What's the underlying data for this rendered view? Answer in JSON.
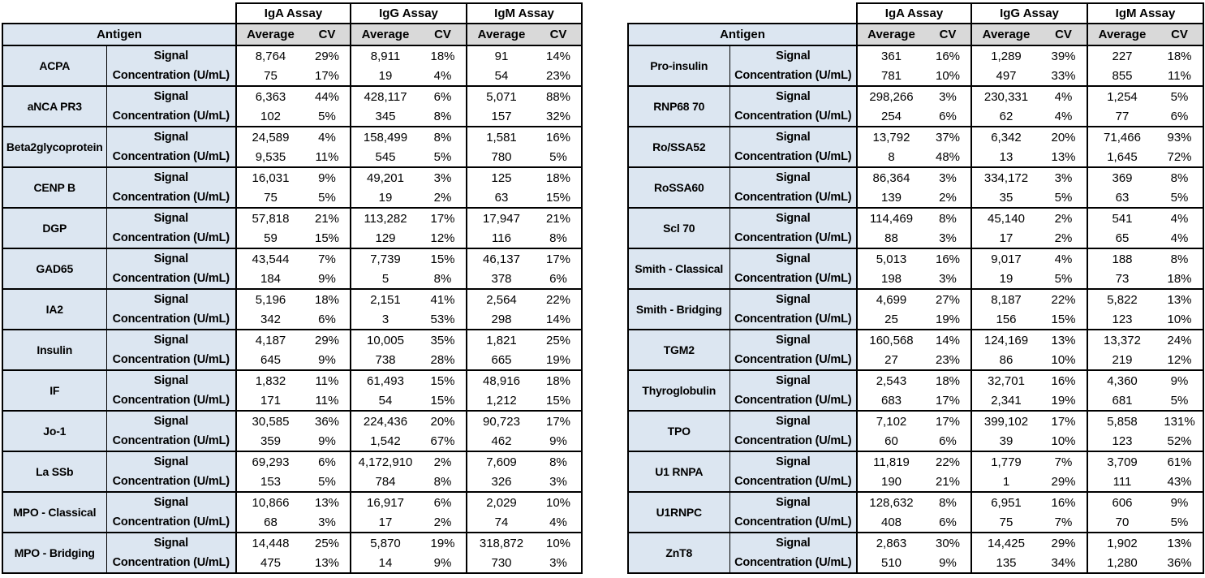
{
  "colors": {
    "antigen_bg": "#DCE6F1",
    "header_bg": "#D9D9D9",
    "border": "#000000",
    "cell_bg": "#FFFFFF"
  },
  "assays": [
    "IgA Assay",
    "IgG Assay",
    "IgM Assay"
  ],
  "headers": {
    "antigen": "Antigen",
    "average": "Average",
    "cv": "CV"
  },
  "row_labels": {
    "signal": "Signal",
    "concentration": "Concentration (U/mL)"
  },
  "tables": [
    {
      "name": "left",
      "rows": [
        {
          "antigen": "ACPA",
          "signal": [
            "8,764",
            "29%",
            "8,911",
            "18%",
            "91",
            "14%"
          ],
          "concentration": [
            "75",
            "17%",
            "19",
            "4%",
            "54",
            "23%"
          ]
        },
        {
          "antigen": "aNCA PR3",
          "signal": [
            "6,363",
            "44%",
            "428,117",
            "6%",
            "5,071",
            "88%"
          ],
          "concentration": [
            "102",
            "5%",
            "345",
            "8%",
            "157",
            "32%"
          ]
        },
        {
          "antigen": "Beta2glycoprotein",
          "signal": [
            "24,589",
            "4%",
            "158,499",
            "8%",
            "1,581",
            "16%"
          ],
          "concentration": [
            "9,535",
            "11%",
            "545",
            "5%",
            "780",
            "5%"
          ]
        },
        {
          "antigen": "CENP B",
          "signal": [
            "16,031",
            "9%",
            "49,201",
            "3%",
            "125",
            "18%"
          ],
          "concentration": [
            "75",
            "5%",
            "19",
            "2%",
            "63",
            "15%"
          ]
        },
        {
          "antigen": "DGP",
          "signal": [
            "57,818",
            "21%",
            "113,282",
            "17%",
            "17,947",
            "21%"
          ],
          "concentration": [
            "59",
            "15%",
            "129",
            "12%",
            "116",
            "8%"
          ]
        },
        {
          "antigen": "GAD65",
          "signal": [
            "43,544",
            "7%",
            "7,739",
            "15%",
            "46,137",
            "17%"
          ],
          "concentration": [
            "184",
            "9%",
            "5",
            "8%",
            "378",
            "6%"
          ]
        },
        {
          "antigen": "IA2",
          "signal": [
            "5,196",
            "18%",
            "2,151",
            "41%",
            "2,564",
            "22%"
          ],
          "concentration": [
            "342",
            "6%",
            "3",
            "53%",
            "298",
            "14%"
          ]
        },
        {
          "antigen": "Insulin",
          "signal": [
            "4,187",
            "29%",
            "10,005",
            "35%",
            "1,821",
            "25%"
          ],
          "concentration": [
            "645",
            "9%",
            "738",
            "28%",
            "665",
            "19%"
          ]
        },
        {
          "antigen": "IF",
          "signal": [
            "1,832",
            "11%",
            "61,493",
            "15%",
            "48,916",
            "18%"
          ],
          "concentration": [
            "171",
            "11%",
            "54",
            "15%",
            "1,212",
            "15%"
          ]
        },
        {
          "antigen": "Jo-1",
          "signal": [
            "30,585",
            "36%",
            "224,436",
            "20%",
            "90,723",
            "17%"
          ],
          "concentration": [
            "359",
            "9%",
            "1,542",
            "67%",
            "462",
            "9%"
          ]
        },
        {
          "antigen": "La SSb",
          "signal": [
            "69,293",
            "6%",
            "4,172,910",
            "2%",
            "7,609",
            "8%"
          ],
          "concentration": [
            "153",
            "5%",
            "784",
            "8%",
            "326",
            "3%"
          ]
        },
        {
          "antigen": "MPO - Classical",
          "signal": [
            "10,866",
            "13%",
            "16,917",
            "6%",
            "2,029",
            "10%"
          ],
          "concentration": [
            "68",
            "3%",
            "17",
            "2%",
            "74",
            "4%"
          ]
        },
        {
          "antigen": "MPO - Bridging",
          "signal": [
            "14,448",
            "25%",
            "5,870",
            "19%",
            "318,872",
            "10%"
          ],
          "concentration": [
            "475",
            "13%",
            "14",
            "9%",
            "730",
            "3%"
          ]
        }
      ]
    },
    {
      "name": "right",
      "rows": [
        {
          "antigen": "Pro-insulin",
          "signal": [
            "361",
            "16%",
            "1,289",
            "39%",
            "227",
            "18%"
          ],
          "concentration": [
            "781",
            "10%",
            "497",
            "33%",
            "855",
            "11%"
          ]
        },
        {
          "antigen": "RNP68 70",
          "signal": [
            "298,266",
            "3%",
            "230,331",
            "4%",
            "1,254",
            "5%"
          ],
          "concentration": [
            "254",
            "6%",
            "62",
            "4%",
            "77",
            "6%"
          ]
        },
        {
          "antigen": "Ro/SSA52",
          "signal": [
            "13,792",
            "37%",
            "6,342",
            "20%",
            "71,466",
            "93%"
          ],
          "concentration": [
            "8",
            "48%",
            "13",
            "13%",
            "1,645",
            "72%"
          ]
        },
        {
          "antigen": "RoSSA60",
          "signal": [
            "86,364",
            "3%",
            "334,172",
            "3%",
            "369",
            "8%"
          ],
          "concentration": [
            "139",
            "2%",
            "35",
            "5%",
            "63",
            "5%"
          ]
        },
        {
          "antigen": "Scl 70",
          "signal": [
            "114,469",
            "8%",
            "45,140",
            "2%",
            "541",
            "4%"
          ],
          "concentration": [
            "88",
            "3%",
            "17",
            "2%",
            "65",
            "4%"
          ]
        },
        {
          "antigen": "Smith - Classical",
          "signal": [
            "5,013",
            "16%",
            "9,017",
            "4%",
            "188",
            "8%"
          ],
          "concentration": [
            "198",
            "3%",
            "19",
            "5%",
            "73",
            "18%"
          ]
        },
        {
          "antigen": "Smith - Bridging",
          "signal": [
            "4,699",
            "27%",
            "8,187",
            "22%",
            "5,822",
            "13%"
          ],
          "concentration": [
            "25",
            "19%",
            "156",
            "15%",
            "123",
            "10%"
          ]
        },
        {
          "antigen": "TGM2",
          "signal": [
            "160,568",
            "14%",
            "124,169",
            "13%",
            "13,372",
            "24%"
          ],
          "concentration": [
            "27",
            "23%",
            "86",
            "10%",
            "219",
            "12%"
          ]
        },
        {
          "antigen": "Thyroglobulin",
          "signal": [
            "2,543",
            "18%",
            "32,701",
            "16%",
            "4,360",
            "9%"
          ],
          "concentration": [
            "683",
            "17%",
            "2,341",
            "19%",
            "681",
            "5%"
          ]
        },
        {
          "antigen": "TPO",
          "signal": [
            "7,102",
            "17%",
            "399,102",
            "17%",
            "5,858",
            "131%"
          ],
          "concentration": [
            "60",
            "6%",
            "39",
            "10%",
            "123",
            "52%"
          ]
        },
        {
          "antigen": "U1 RNPA",
          "signal": [
            "11,819",
            "22%",
            "1,779",
            "7%",
            "3,709",
            "61%"
          ],
          "concentration": [
            "190",
            "21%",
            "1",
            "29%",
            "111",
            "43%"
          ]
        },
        {
          "antigen": "U1RNPC",
          "signal": [
            "128,632",
            "8%",
            "6,951",
            "16%",
            "606",
            "9%"
          ],
          "concentration": [
            "408",
            "6%",
            "75",
            "7%",
            "70",
            "5%"
          ]
        },
        {
          "antigen": "ZnT8",
          "signal": [
            "2,863",
            "30%",
            "14,425",
            "29%",
            "1,902",
            "13%"
          ],
          "concentration": [
            "510",
            "9%",
            "135",
            "34%",
            "1,280",
            "36%"
          ]
        }
      ]
    }
  ]
}
